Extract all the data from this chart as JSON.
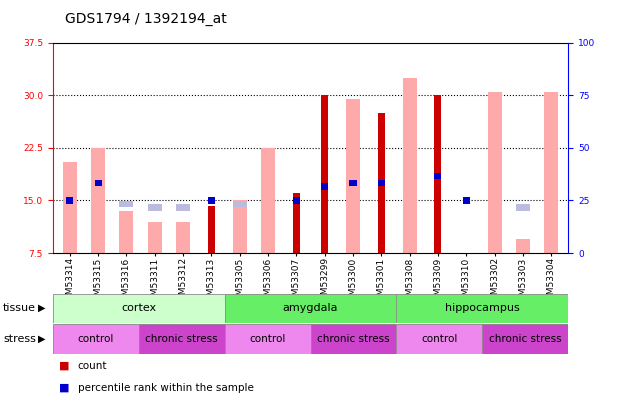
{
  "title": "GDS1794 / 1392194_at",
  "samples": [
    "GSM53314",
    "GSM53315",
    "GSM53316",
    "GSM53311",
    "GSM53312",
    "GSM53313",
    "GSM53305",
    "GSM53306",
    "GSM53307",
    "GSM53299",
    "GSM53300",
    "GSM53301",
    "GSM53308",
    "GSM53309",
    "GSM53310",
    "GSM53302",
    "GSM53303",
    "GSM53304"
  ],
  "count_values": [
    null,
    null,
    null,
    null,
    null,
    14.2,
    null,
    null,
    16.0,
    30.0,
    null,
    27.5,
    null,
    30.0,
    null,
    null,
    null,
    null
  ],
  "percentile_values": [
    15.0,
    17.5,
    null,
    null,
    null,
    15.0,
    null,
    null,
    15.0,
    17.0,
    17.5,
    17.5,
    null,
    18.5,
    15.0,
    null,
    null,
    null
  ],
  "absent_value_values": [
    20.5,
    22.5,
    13.5,
    12.0,
    12.0,
    null,
    15.0,
    22.5,
    null,
    null,
    29.5,
    null,
    32.5,
    null,
    null,
    30.5,
    9.5,
    30.5
  ],
  "absent_rank_values": [
    null,
    null,
    14.5,
    14.0,
    14.0,
    null,
    14.5,
    null,
    null,
    null,
    null,
    null,
    null,
    null,
    null,
    null,
    14.0,
    null
  ],
  "ylim_left": [
    7.5,
    37.5
  ],
  "ylim_right": [
    0,
    100
  ],
  "yticks_left": [
    7.5,
    15.0,
    22.5,
    30.0,
    37.5
  ],
  "yticks_right": [
    0,
    25,
    50,
    75,
    100
  ],
  "color_count": "#cc0000",
  "color_percentile": "#0000cc",
  "color_absent_value": "#ffaaaa",
  "color_absent_rank": "#bbbbdd",
  "tissue_colors": {
    "cortex": "#ccffcc",
    "amygdala": "#66ee66",
    "hippocampus": "#66ee66"
  },
  "stress_colors": {
    "control": "#ee88ee",
    "chronic stress": "#cc44cc"
  },
  "tissue_groups": [
    [
      "cortex",
      0,
      6
    ],
    [
      "amygdala",
      6,
      12
    ],
    [
      "hippocampus",
      12,
      18
    ]
  ],
  "stress_groups": [
    [
      "control",
      0,
      3
    ],
    [
      "chronic stress",
      3,
      6
    ],
    [
      "control",
      6,
      9
    ],
    [
      "chronic stress",
      9,
      12
    ],
    [
      "control",
      12,
      15
    ],
    [
      "chronic stress",
      15,
      18
    ]
  ],
  "bar_width": 0.5,
  "bar_bottom": 7.5,
  "title_fontsize": 10,
  "tick_fontsize": 6.5,
  "label_fontsize": 8,
  "legend_fontsize": 7.5,
  "row_label_fontsize": 8
}
